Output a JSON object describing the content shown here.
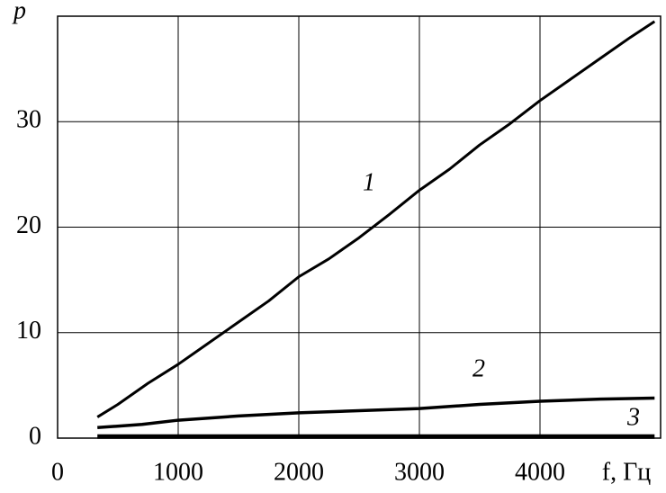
{
  "chart_data": {
    "type": "line",
    "y_label": "p",
    "x_label": "f, Гц",
    "xlim": [
      0,
      5000
    ],
    "xticks": [
      0,
      1000,
      2000,
      3000,
      4000
    ],
    "ylim": [
      0,
      40
    ],
    "yticks": [
      0,
      10,
      20,
      30
    ],
    "grid": true,
    "series": [
      {
        "name": "1",
        "color": "#000000",
        "x": [
          330,
          500,
          750,
          1000,
          1250,
          1500,
          1750,
          2000,
          2250,
          2500,
          2750,
          3000,
          3250,
          3500,
          3750,
          4000,
          4250,
          4500,
          4750,
          4950
        ],
        "values": [
          2,
          3.2,
          5.2,
          7,
          9,
          11,
          13,
          15.3,
          17,
          19,
          21.2,
          23.5,
          25.5,
          27.8,
          29.8,
          32,
          34,
          36,
          38,
          39.5
        ]
      },
      {
        "name": "2",
        "color": "#000000",
        "x": [
          330,
          700,
          1000,
          1500,
          2000,
          2500,
          3000,
          3500,
          4000,
          4500,
          4950
        ],
        "values": [
          1,
          1.3,
          1.7,
          2.1,
          2.4,
          2.6,
          2.8,
          3.2,
          3.5,
          3.7,
          3.8
        ]
      },
      {
        "name": "3",
        "color": "#000000",
        "x": [
          330,
          4950
        ],
        "values": [
          0.15,
          0.15
        ]
      }
    ]
  }
}
